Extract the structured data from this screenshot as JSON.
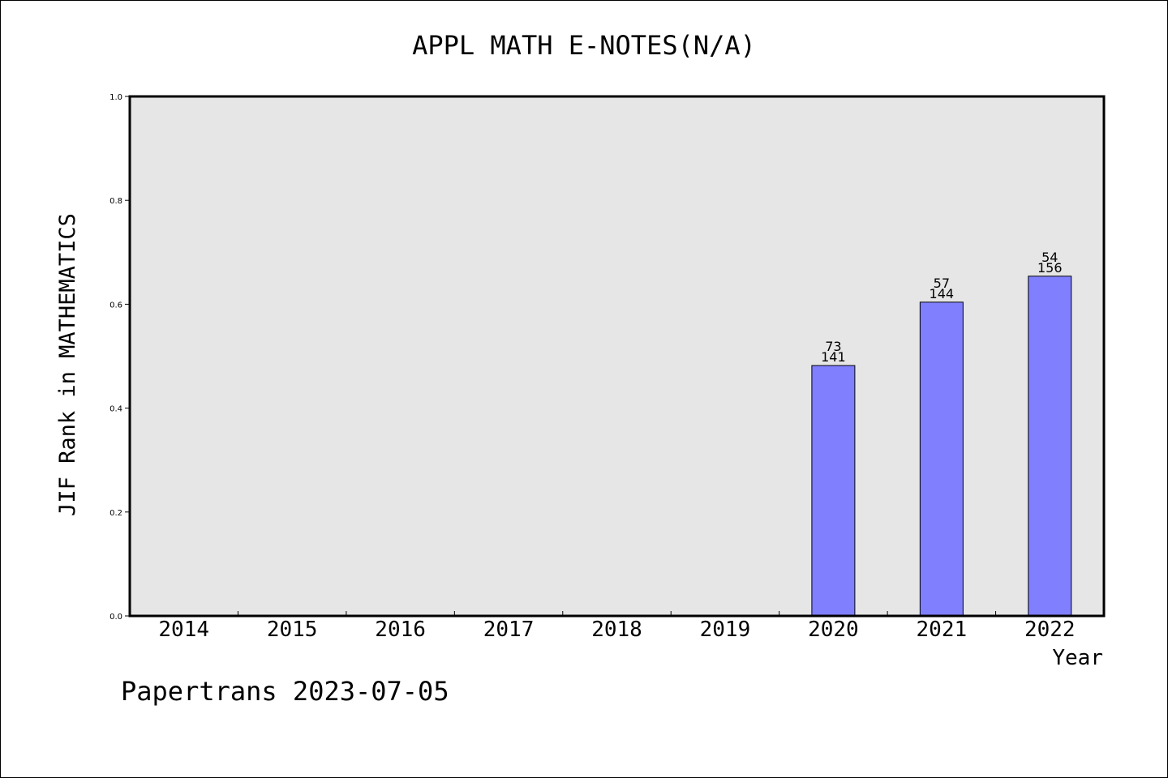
{
  "chart_data": {
    "type": "bar",
    "title": "APPL MATH E-NOTES(N/A)",
    "xlabel": "Year",
    "ylabel": "JIF Rank in MATHEMATICS",
    "categories": [
      "2014",
      "2015",
      "2016",
      "2017",
      "2018",
      "2019",
      "2020",
      "2021",
      "2022"
    ],
    "values": [
      null,
      null,
      null,
      null,
      null,
      null,
      0.482,
      0.604,
      0.654
    ],
    "bar_labels": [
      null,
      null,
      null,
      null,
      null,
      null,
      {
        "rank": "73",
        "total": "141"
      },
      {
        "rank": "57",
        "total": "144"
      },
      {
        "rank": "54",
        "total": "156"
      }
    ],
    "ylim": [
      0,
      1.0
    ],
    "yticks": [
      "0.0",
      "0.2",
      "0.4",
      "0.6",
      "0.8",
      "1.0"
    ],
    "grid": false,
    "colors": {
      "bar_fill": "#8080ff",
      "plot_background": "#e6e6e6",
      "frame": "#000000"
    }
  },
  "footer": {
    "source": "Papertrans 2023-07-05"
  }
}
